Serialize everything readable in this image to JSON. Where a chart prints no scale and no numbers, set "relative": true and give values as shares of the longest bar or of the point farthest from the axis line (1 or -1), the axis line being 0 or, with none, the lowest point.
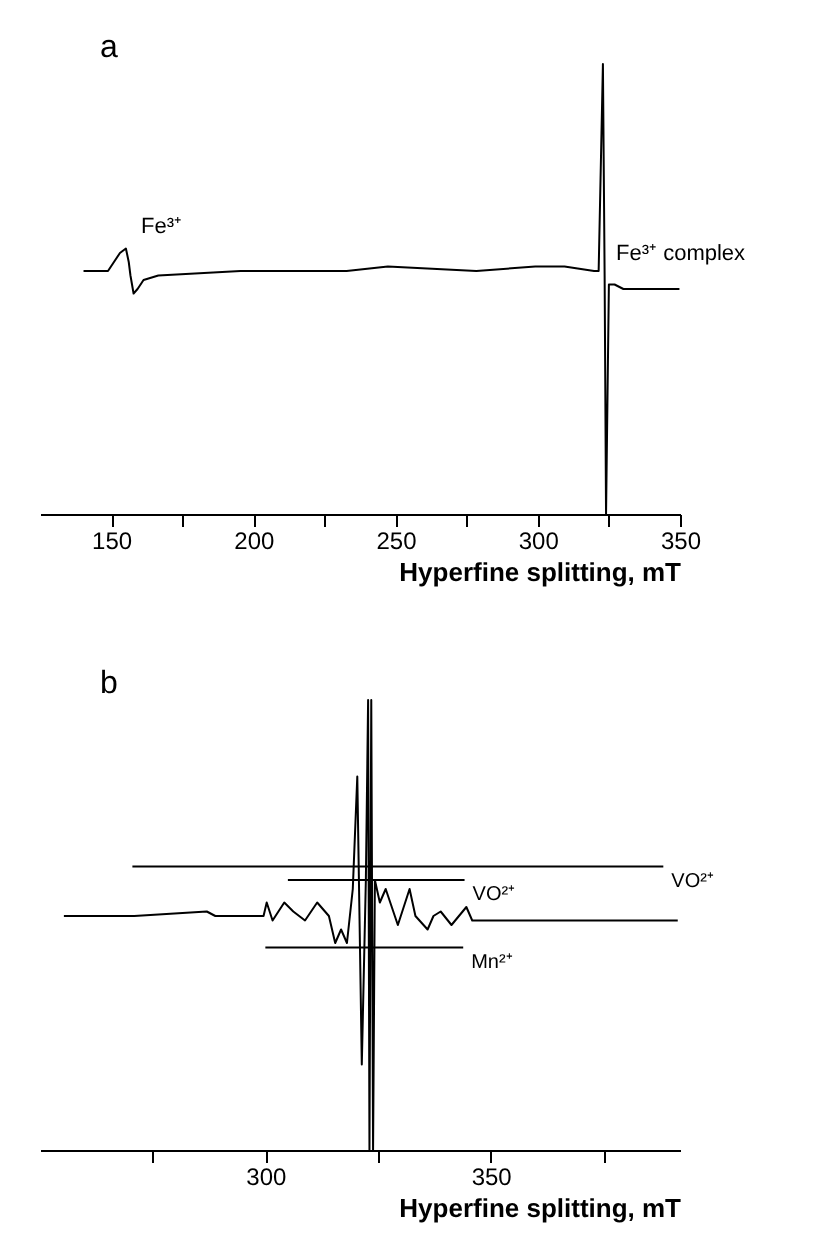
{
  "chart_data": [
    {
      "type": "line",
      "title": "a",
      "xlabel": "Hyperfine splitting, mT",
      "relative": true,
      "xlim": [
        125,
        350
      ],
      "xticks": [
        150,
        {
          "value": 175,
          "label": null
        },
        200,
        {
          "value": 225,
          "label": null
        },
        250,
        {
          "value": 275,
          "label": null
        },
        300,
        {
          "value": 325,
          "label": null
        },
        350
      ],
      "series": [
        {
          "color": "#000000",
          "x": [
            140.3,
            148.9,
            153.1,
            155.2,
            156.2,
            156.8,
            157.9,
            159.3,
            161.4,
            166.6,
            195.5,
            216.3,
            232.8,
            247.3,
            278.4,
            299.1,
            309.4,
            319.8,
            321.4,
            322.9,
            323.5,
            324.0,
            325.0,
            327.0,
            330.1,
            349.8
          ],
          "values": [
            0.54,
            0.54,
            0.58,
            0.59,
            0.56,
            0.53,
            0.49,
            0.5,
            0.52,
            0.53,
            0.54,
            0.54,
            0.54,
            0.55,
            0.54,
            0.55,
            0.55,
            0.54,
            0.54,
            1.0,
            0.53,
            0.0,
            0.51,
            0.51,
            0.5,
            0.5
          ]
        }
      ],
      "annotations": [
        {
          "text": "Fe³⁺",
          "x": 157,
          "y": 0.59
        },
        {
          "text": "Fe³⁺ complex",
          "x": 324,
          "y": 0.53
        }
      ]
    },
    {
      "type": "line",
      "title": "b",
      "xlabel": "Hyperfine splitting, mT",
      "relative": true,
      "xlim": [
        250,
        392
      ],
      "xticks": [
        {
          "value": 275,
          "label": null
        },
        300,
        {
          "value": 325,
          "label": null
        },
        350,
        {
          "value": 375,
          "label": null
        }
      ],
      "series": [
        {
          "color": "#000000",
          "x": [
            255.3,
            270.9,
            287.0,
            288.9,
            299.6,
            300.3,
            301.6,
            304.2,
            306.2,
            308.8,
            311.5,
            314.1,
            315.5,
            316.8,
            318.1,
            319.4,
            320.4,
            321.4,
            322.3,
            322.8,
            323.1,
            323.5,
            323.9,
            324.3,
            325.4,
            326.7,
            329.4,
            332.0,
            333.3,
            336.0,
            337.3,
            338.9,
            341.3,
            344.6,
            345.9,
            354.5,
            371.7,
            391.5
          ],
          "values": [
            0.52,
            0.52,
            0.53,
            0.52,
            0.52,
            0.55,
            0.51,
            0.55,
            0.53,
            0.51,
            0.55,
            0.52,
            0.46,
            0.49,
            0.46,
            0.58,
            0.83,
            0.19,
            0.6,
            1.0,
            0.0,
            1.0,
            0.0,
            0.6,
            0.55,
            0.58,
            0.5,
            0.58,
            0.52,
            0.49,
            0.52,
            0.53,
            0.5,
            0.54,
            0.51,
            0.51,
            0.51,
            0.51
          ]
        },
        {
          "name": "VO²⁺",
          "color": "#000000",
          "x": [
            270.5,
            287.0,
            304.6,
            320.1,
            336.4,
            354.5,
            371.7,
            388.3
          ],
          "values": [
            0.63,
            0.63,
            0.63,
            0.63,
            0.63,
            0.63,
            0.63,
            0.63
          ]
        },
        {
          "name": "VO²⁺",
          "color": "#000000",
          "x": [
            305.0,
            310.6,
            316.2,
            321.8,
            327.4,
            333.0,
            338.6,
            344.2
          ],
          "values": [
            0.6,
            0.6,
            0.6,
            0.6,
            0.6,
            0.6,
            0.6,
            0.6
          ]
        },
        {
          "name": "Mn²⁺",
          "color": "#000000",
          "x": [
            300.0,
            309.1,
            318.5,
            326.7,
            335.3,
            343.9
          ],
          "values": [
            0.45,
            0.45,
            0.45,
            0.45,
            0.45,
            0.45
          ]
        }
      ]
    }
  ]
}
